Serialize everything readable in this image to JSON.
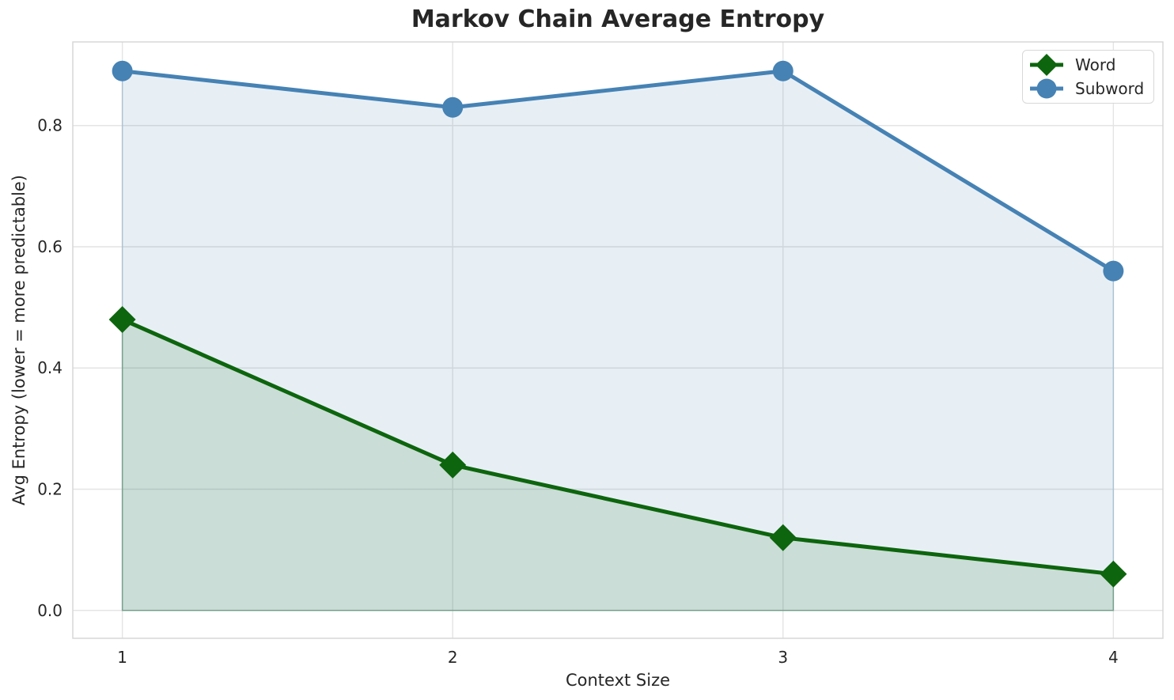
{
  "chart_data": {
    "type": "line",
    "title": "Markov Chain Average Entropy",
    "xlabel": "Context Size",
    "ylabel": "Avg Entropy (lower = more predictable)",
    "x": [
      1,
      2,
      3,
      4
    ],
    "series": [
      {
        "name": "Word",
        "values": [
          0.48,
          0.24,
          0.12,
          0.06
        ],
        "color": "#0d650d",
        "fill_rgba": "rgba(13,101,13,0.13)",
        "edge_rgba": "rgba(13,101,13,0.3)",
        "marker": "diamond",
        "area_fill": true
      },
      {
        "name": "Subword",
        "values": [
          0.89,
          0.83,
          0.89,
          0.56
        ],
        "color": "#4682b4",
        "fill_rgba": "rgba(70,130,180,0.13)",
        "edge_rgba": "rgba(70,130,180,0.3)",
        "marker": "circle",
        "area_fill": true
      }
    ],
    "xtick_labels": [
      "1",
      "2",
      "3",
      "4"
    ],
    "ytick_values": [
      0.0,
      0.2,
      0.4,
      0.6,
      0.8
    ],
    "ytick_labels": [
      "0.0",
      "0.2",
      "0.4",
      "0.6",
      "0.8"
    ],
    "xlim": [
      0.85,
      4.15
    ],
    "ylim": [
      -0.046,
      0.938
    ],
    "grid": true,
    "legend_position": "upper right",
    "legend_entries": [
      "Word",
      "Subword"
    ],
    "style": {
      "grid_color": "#e4e4e4",
      "spine_color": "#d4d4d4",
      "text_color": "#262626",
      "background": "#ffffff"
    }
  }
}
